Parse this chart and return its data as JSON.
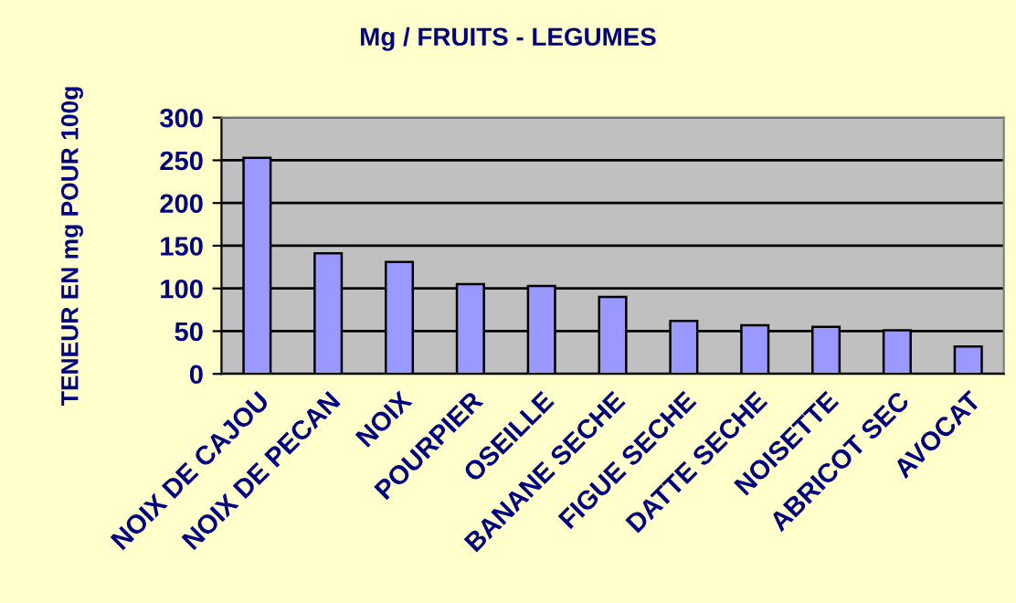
{
  "chart_data": {
    "type": "bar",
    "title": "Mg / FRUITS - LEGUMES",
    "ylabel": "TENEUR EN mg POUR 100g",
    "categories": [
      "NOIX DE CAJOU",
      "NOIX DE PECAN",
      "NOIX",
      "POURPIER",
      "OSEILLE",
      "BANANE SECHE",
      "FIGUE SECHE",
      "DATTE SECHE",
      "NOISETTE",
      "ABRICOT SEC",
      "AVOCAT"
    ],
    "values": [
      253,
      141,
      131,
      105,
      103,
      90,
      62,
      57,
      55,
      51,
      32
    ],
    "color": "#9999ff",
    "ylim": [
      0,
      300
    ],
    "yticks": [
      0,
      50,
      100,
      150,
      200,
      250,
      300
    ],
    "grid": "y",
    "legend": false
  }
}
